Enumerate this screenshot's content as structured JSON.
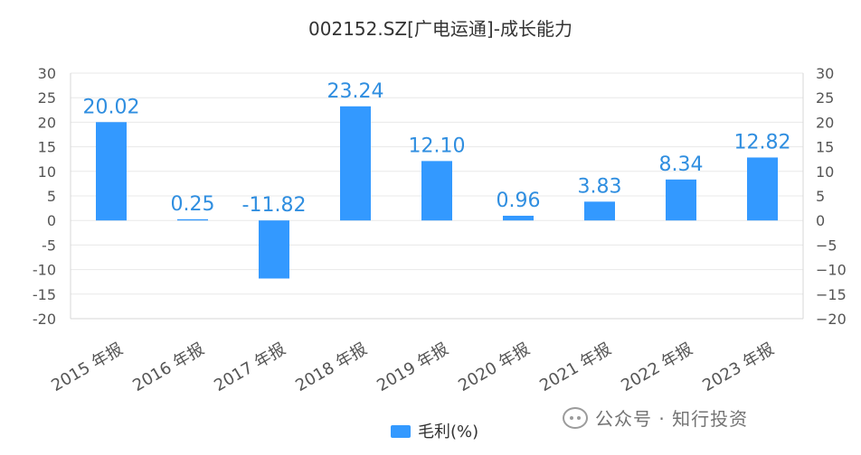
{
  "chart_data": {
    "type": "bar",
    "title": "002152.SZ[广电运通]-成长能力",
    "categories": [
      "2015 年报",
      "2016 年报",
      "2017 年报",
      "2018 年报",
      "2019 年报",
      "2020 年报",
      "2021 年报",
      "2022 年报",
      "2023 年报"
    ],
    "series": [
      {
        "name": "毛利(%)",
        "values": [
          20.02,
          0.25,
          -11.82,
          23.24,
          12.1,
          0.96,
          3.83,
          8.34,
          12.82
        ],
        "labels": [
          "20.02",
          "0.25",
          "-11.82",
          "23.24",
          "12.10",
          "0.96",
          "3.83",
          "8.34",
          "12.82"
        ]
      }
    ],
    "ylim": [
      -20,
      30
    ],
    "yticks": [
      30,
      25,
      20,
      15,
      10,
      5,
      0,
      -5,
      -10,
      -15,
      -20
    ],
    "ytick_labels": [
      "30",
      "25",
      "20",
      "15",
      "10",
      "5",
      "0",
      "-5",
      "-10",
      "-15",
      "-20"
    ],
    "y2ticks": [
      30,
      25,
      20,
      15,
      10,
      5,
      0,
      -5,
      -10,
      -15,
      -20
    ],
    "y2tick_labels": [
      "30",
      "25",
      "20",
      "15",
      "10",
      "5",
      "0",
      "−5",
      "−10",
      "−15",
      "−20"
    ],
    "grid": true,
    "legend_position": "bottom-center",
    "colors": {
      "bar": "#3399ff",
      "label": "#2f8ee0",
      "axis": "#d7d7d7",
      "grid": "#e8e8e8",
      "text": "#333333",
      "tick": "#555555"
    }
  },
  "watermark": {
    "text": "公众号 · 知行投资",
    "icon": "wechat-icon"
  }
}
